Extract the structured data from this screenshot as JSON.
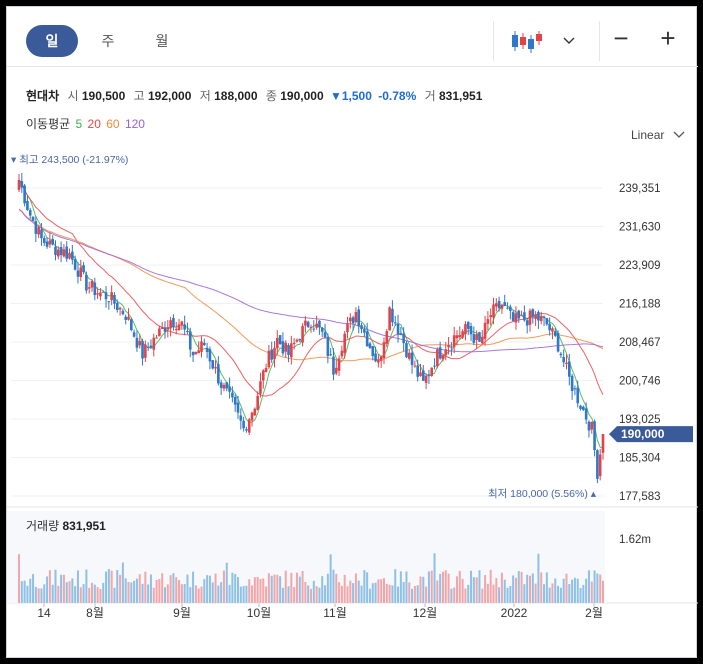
{
  "toolbar": {
    "periods": [
      {
        "label": "일",
        "active": true
      },
      {
        "label": "주",
        "active": false
      },
      {
        "label": "월",
        "active": false
      }
    ],
    "chart_type_icon": "candlestick-icon",
    "dropdown_icon": "chevron-down-icon",
    "zoom_out": "−",
    "zoom_in": "+"
  },
  "quote": {
    "name": "현대차",
    "open_label": "시",
    "open": "190,500",
    "high_label": "고",
    "high": "192,000",
    "low_label": "저",
    "low": "188,000",
    "close_label": "종",
    "close": "190,000",
    "change": "▼1,500",
    "change_pct": "-0.78%",
    "volume_label": "거",
    "volume": "831,951"
  },
  "moving_average": {
    "label": "이동평균",
    "periods": [
      {
        "label": "5",
        "color": "#3fb14a"
      },
      {
        "label": "20",
        "color": "#e8474b"
      },
      {
        "label": "60",
        "color": "#ef8a3c"
      },
      {
        "label": "120",
        "color": "#9b5fd6"
      }
    ]
  },
  "scale": {
    "label": "Linear"
  },
  "chart_data": {
    "type": "candlestick",
    "y_ticks": [
      "239,351",
      "231,630",
      "223,909",
      "216,188",
      "208,467",
      "200,746",
      "193,025",
      "185,304",
      "177,583"
    ],
    "y_tick_values": [
      239351,
      231630,
      223909,
      216188,
      208467,
      200746,
      193025,
      185304,
      177583
    ],
    "x_ticks": [
      "14",
      "8월",
      "9월",
      "10월",
      "11월",
      "12월",
      "2022",
      "2월"
    ],
    "current_price": "190,000",
    "max_label": "▾ 최고 243,500 (-21.97%)",
    "min_label": "최저 180,000 (5.56%) ▴",
    "colors": {
      "up": "#e2434a",
      "down": "#2f78c8",
      "current": "#3b5a9a"
    },
    "volume_max_label": "1.62m"
  },
  "volume": {
    "label": "거래량",
    "value": "831,951"
  }
}
